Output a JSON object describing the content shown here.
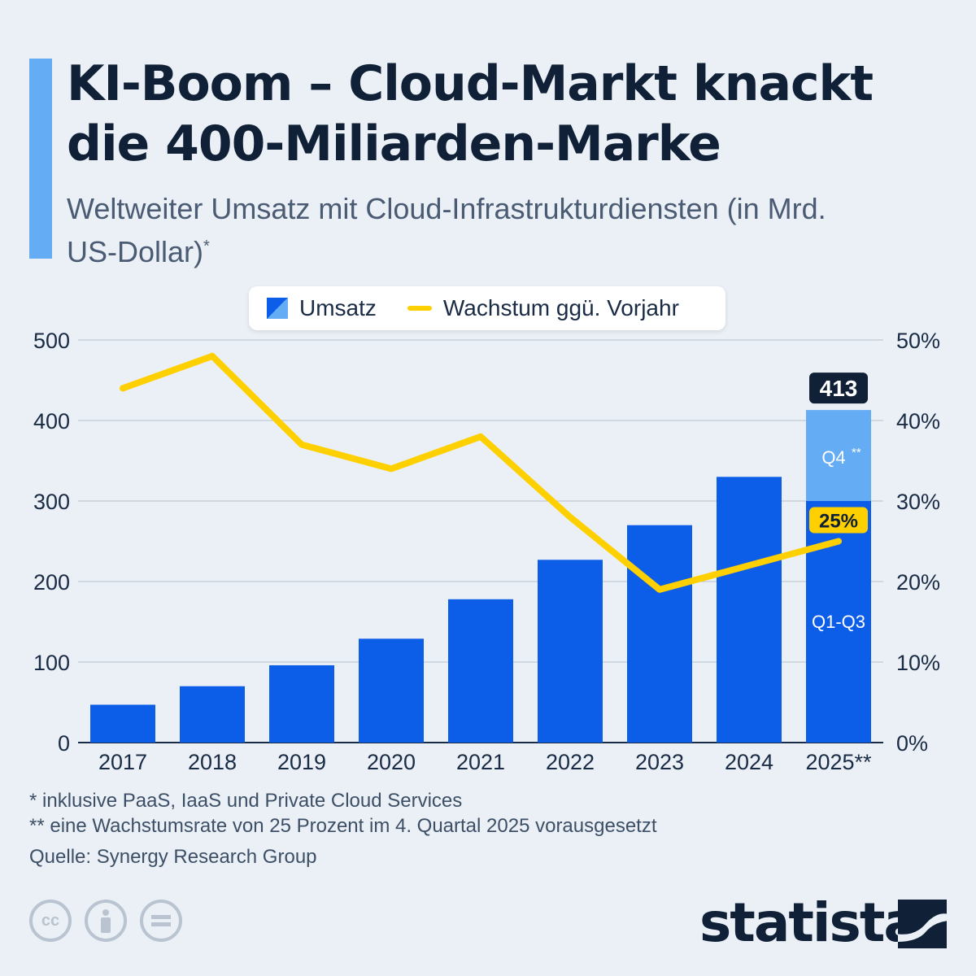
{
  "header": {
    "title": "KI-Boom – Cloud-Markt knackt die 400-Miliarden-Marke",
    "subtitle": "Weltweiter Umsatz mit Cloud-Infrastrukturdiensten (in Mrd. US-Dollar)",
    "subtitle_mark": "*"
  },
  "legend": {
    "revenue_label": "Umsatz",
    "growth_label": "Wachstum ggü. Vorjahr"
  },
  "colors": {
    "bar": "#0c5ee9",
    "bar_light": "#64adf5",
    "line": "#ffd000",
    "dark": "#0f2037"
  },
  "chart_data": {
    "type": "bar",
    "categories": [
      "2017",
      "2018",
      "2019",
      "2020",
      "2021",
      "2022",
      "2023",
      "2024",
      "2025**"
    ],
    "series": [
      {
        "name": "Umsatz",
        "type": "bar",
        "axis": "left",
        "values": [
          47,
          70,
          96,
          129,
          178,
          227,
          270,
          330,
          413
        ],
        "stack_2025": {
          "Q1-Q3": 300,
          "Q4**": 113
        }
      },
      {
        "name": "Wachstum ggü. Vorjahr",
        "type": "line",
        "axis": "right",
        "values": [
          44,
          48,
          37,
          34,
          38,
          28,
          19,
          22,
          25
        ]
      }
    ],
    "left_axis": {
      "ylim": [
        0,
        500
      ],
      "ticks": [
        "0",
        "100",
        "200",
        "300",
        "400",
        "500"
      ]
    },
    "right_axis": {
      "ylim": [
        0,
        50
      ],
      "ticks": [
        "0%",
        "10%",
        "20%",
        "30%",
        "40%",
        "50%"
      ]
    },
    "annotations": {
      "total_label": "413",
      "growth_label": "25%",
      "q4_label": "Q4",
      "q4_mark": "**",
      "q13_label": "Q1-Q3"
    },
    "grid": true,
    "legend_position": "top-center"
  },
  "footer": {
    "note1": "*   inklusive PaaS, IaaS und Private Cloud Services",
    "note2": "** eine Wachstumsrate von 25 Prozent im 4. Quartal 2025 vorausgesetzt",
    "source": "Quelle: Synergy Research Group",
    "brand": "statista"
  }
}
